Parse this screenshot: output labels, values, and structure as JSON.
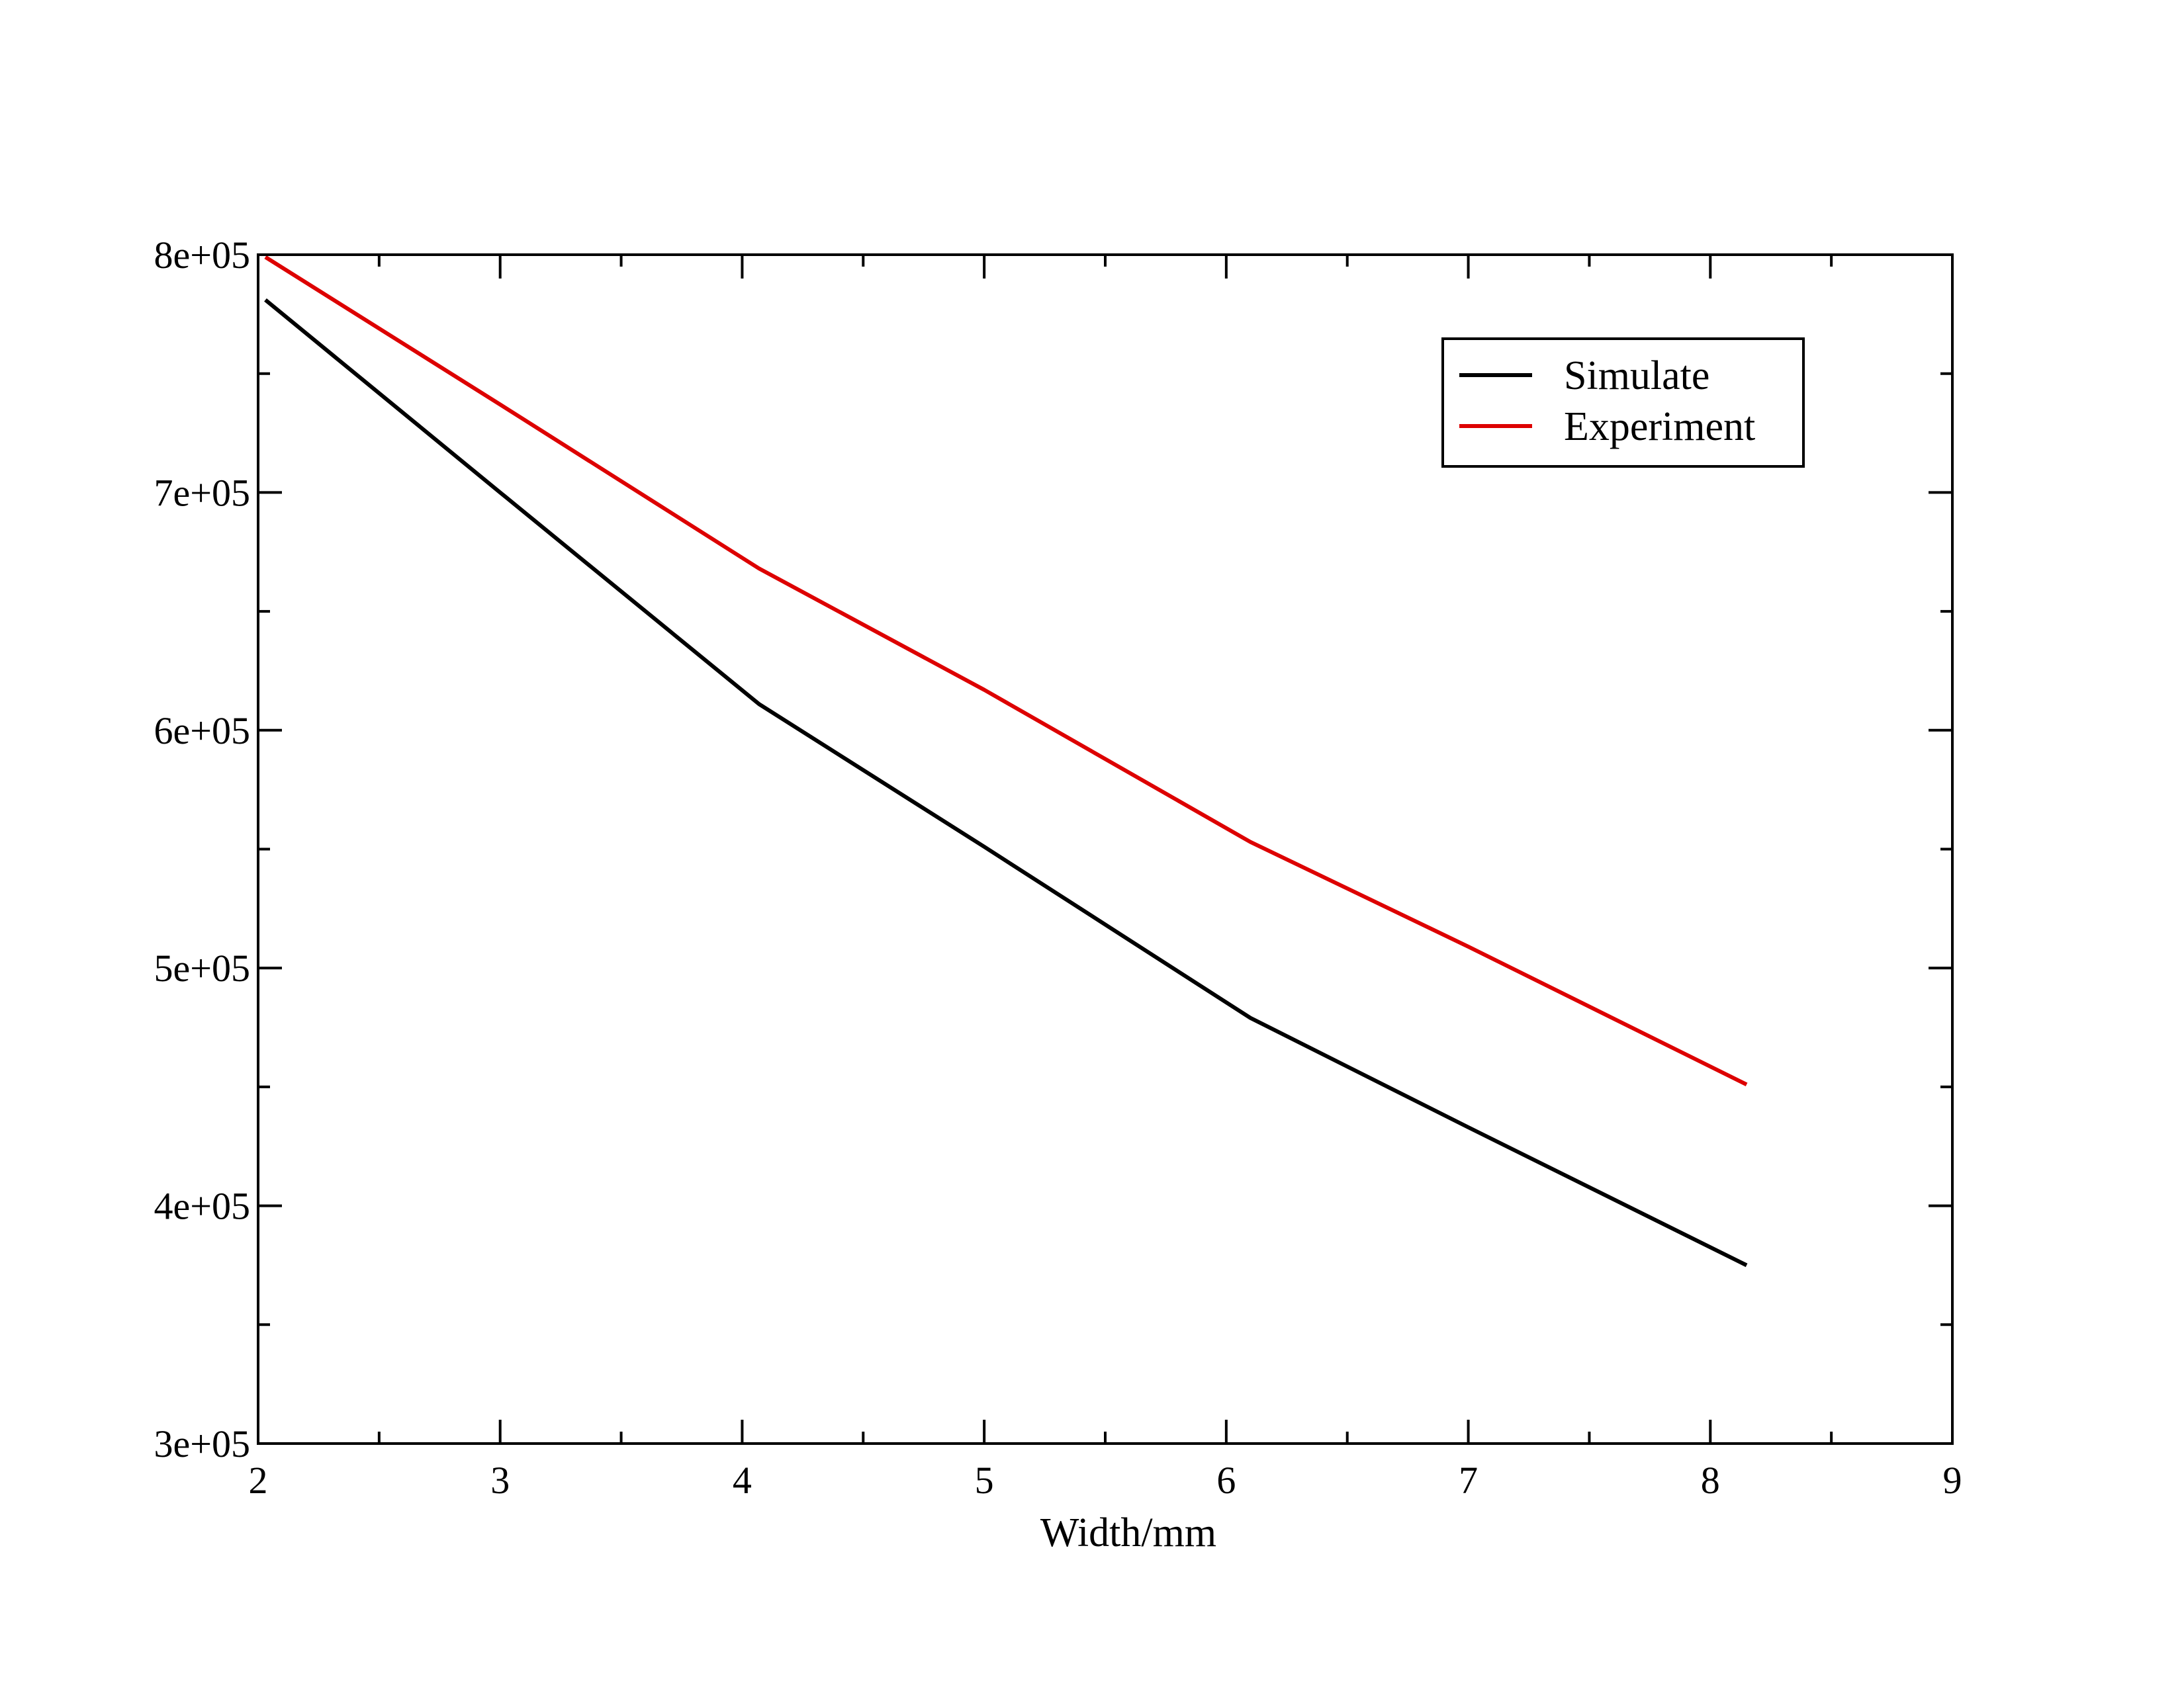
{
  "chart_data": {
    "type": "line",
    "title": "",
    "xlabel": "Width/mm",
    "ylabel": "",
    "xlim": [
      2,
      9
    ],
    "ylim": [
      300000,
      800000
    ],
    "x_ticks_major": [
      2,
      3,
      4,
      5,
      6,
      7,
      8,
      9
    ],
    "x_tick_labels": [
      "2",
      "3",
      "4",
      "5",
      "6",
      "7",
      "8",
      "9"
    ],
    "y_ticks_major": [
      300000,
      400000,
      500000,
      600000,
      700000,
      800000
    ],
    "y_tick_labels": [
      "3e+05",
      "4e+05",
      "5e+05",
      "6e+05",
      "7e+05",
      "8e+05"
    ],
    "grid": false,
    "legend_position": "top-right",
    "series": [
      {
        "name": "Simulate",
        "color": "#000000",
        "x": [
          2.03,
          3.0,
          4.07,
          5.0,
          6.1,
          7.0,
          8.15
        ],
        "y": [
          781000,
          700000,
          611000,
          551000,
          479000,
          433000,
          375000
        ]
      },
      {
        "name": "Experiment",
        "color": "#dd0000",
        "x": [
          2.03,
          3.0,
          4.07,
          5.0,
          6.1,
          7.0,
          8.15
        ],
        "y": [
          799000,
          737000,
          668000,
          617000,
          553000,
          509000,
          451000
        ]
      }
    ]
  }
}
